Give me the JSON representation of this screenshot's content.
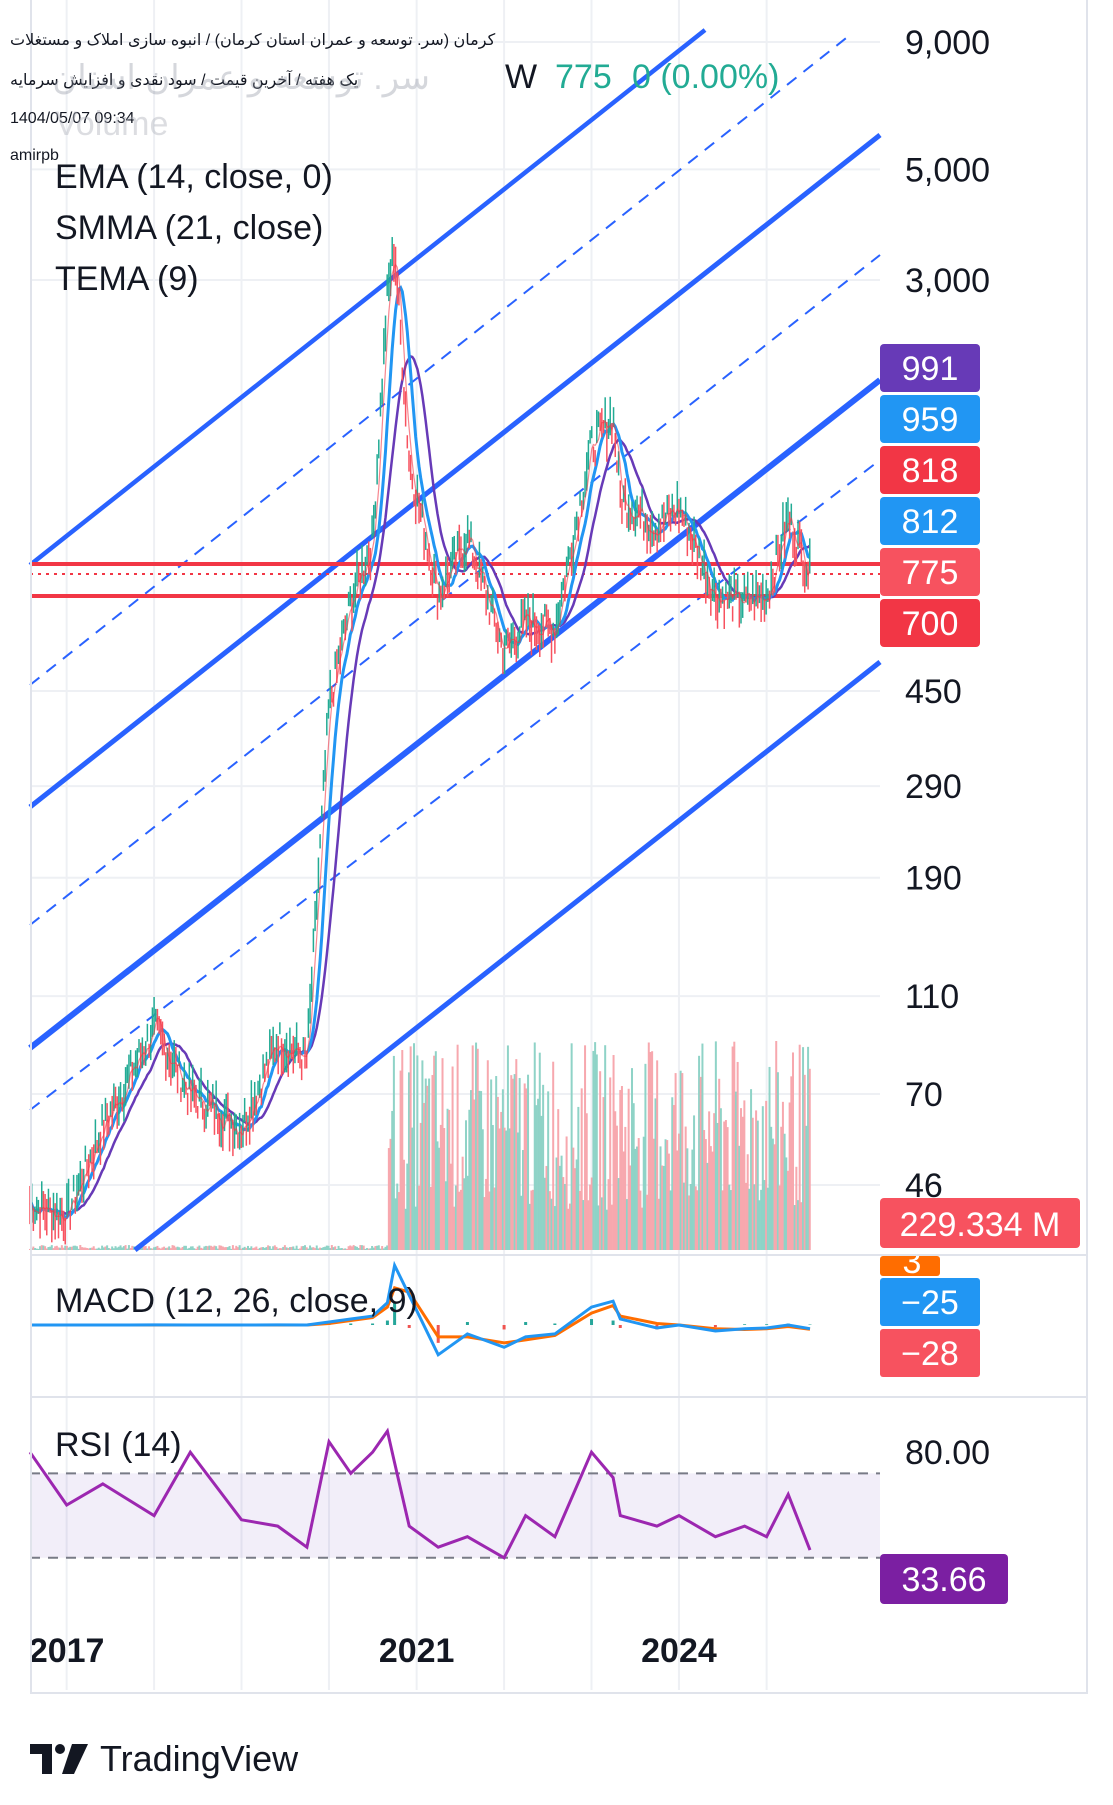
{
  "header": {
    "title": "کرمان (سر. توسعه و عمران استان کرمان) / انبوه سازی املاک و مستغلات",
    "subtitle": "یک هفته / آخرین قیمت / سود نقدی و افزایش سرمایه",
    "datetime": "1404/05/07 09:34",
    "author": "amirpb",
    "symbol": "سر. توسعه و عمران استان کرمان",
    "interval": "W",
    "price": "775",
    "change": "0 (0.00%)",
    "volume_label": "Volume"
  },
  "indicators": {
    "ema": "EMA (14, close, 0)",
    "smma": "SMMA (21, close)",
    "tema": "TEMA (9)",
    "macd": "MACD (12, 26, close, 9)",
    "rsi": "RSI (14)"
  },
  "price_axis": [
    "9,000",
    "5,000",
    "3,000",
    "450",
    "290",
    "190",
    "110",
    "70",
    "46"
  ],
  "price_badges": [
    {
      "label": "991",
      "color": "#673ab7"
    },
    {
      "label": "959",
      "color": "#2196f3"
    },
    {
      "label": "818",
      "color": "#f23645"
    },
    {
      "label": "812",
      "color": "#2196f3"
    },
    {
      "label": "775",
      "color": "#f7525f"
    },
    {
      "label": "700",
      "color": "#f23645"
    },
    {
      "label": "229.334 M",
      "color": "#f7525f"
    }
  ],
  "macd_badges": [
    {
      "label": "3",
      "color": "#ff6d00"
    },
    {
      "label": "−25",
      "color": "#2196f3"
    },
    {
      "label": "−28",
      "color": "#f7525f"
    }
  ],
  "rsi_axis": [
    "80.00"
  ],
  "rsi_badge": {
    "label": "33.66",
    "color": "#7b1fa2"
  },
  "time_axis": [
    "2017",
    "2021",
    "2024"
  ],
  "brand": "TradingView",
  "chart_data": {
    "type": "line",
    "scale": "log",
    "interval": "W",
    "x": [
      "2016-08",
      "2017-01",
      "2017-06",
      "2018-01",
      "2018-06",
      "2019-01",
      "2019-06",
      "2019-10",
      "2020-01",
      "2020-04",
      "2020-07",
      "2020-09",
      "2020-10",
      "2020-12",
      "2021-04",
      "2021-08",
      "2022-01",
      "2022-04",
      "2022-08",
      "2023-01",
      "2023-04",
      "2023-05",
      "2023-10",
      "2024-01",
      "2024-06",
      "2024-10",
      "2025-01",
      "2025-04",
      "2025-07"
    ],
    "close": [
      42,
      40,
      60,
      95,
      70,
      60,
      90,
      82,
      420,
      680,
      900,
      2800,
      3500,
      1300,
      700,
      920,
      540,
      620,
      600,
      1400,
      1600,
      1100,
      960,
      1050,
      700,
      680,
      700,
      1000,
      775
    ],
    "horizontal_levels": [
      775,
      818,
      700
    ],
    "ylim": [
      40,
      9000
    ],
    "rsi": {
      "values": [
        80,
        55,
        65,
        50,
        80,
        48,
        45,
        35,
        85,
        70,
        80,
        90,
        75,
        45,
        35,
        40,
        30,
        50,
        40,
        80,
        68,
        50,
        45,
        50,
        40,
        45,
        40,
        60,
        33.66
      ],
      "bands": [
        30,
        70
      ],
      "ylim": [
        10,
        100
      ]
    },
    "macd": {
      "macd": [
        0,
        0,
        0,
        1,
        0,
        0,
        1,
        0,
        20,
        40,
        60,
        150,
        400,
        200,
        -200,
        -60,
        -150,
        -80,
        -60,
        120,
        160,
        40,
        -20,
        0,
        -40,
        -25,
        -20,
        0,
        -25
      ],
      "signal": [
        0,
        0,
        0,
        0,
        0,
        0,
        0,
        0,
        10,
        30,
        50,
        120,
        250,
        220,
        -80,
        -80,
        -120,
        -100,
        -70,
        80,
        130,
        60,
        10,
        0,
        -25,
        -30,
        -25,
        -10,
        -28
      ],
      "ylim": [
        -450,
        450
      ]
    }
  }
}
